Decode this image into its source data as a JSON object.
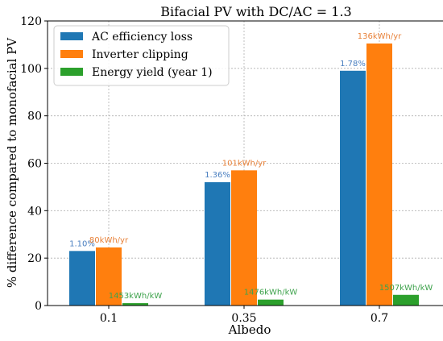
{
  "chart_data": {
    "type": "bar",
    "title": "Bifacial PV with DC/AC = 1.3",
    "xlabel": "Albedo",
    "ylabel": "% difference compared to monofacial PV",
    "categories": [
      "0.1",
      "0.35",
      "0.7"
    ],
    "ylim": [
      0,
      120
    ],
    "yticks": [
      "0",
      "20",
      "40",
      "60",
      "80",
      "100",
      "120"
    ],
    "grid": true,
    "legend_position": "top-left",
    "series": [
      {
        "name": "AC efficiency loss",
        "color": "#1f77b4",
        "label_color": "#4a7fc0",
        "values": [
          23,
          52,
          99
        ],
        "labels": [
          "1.10%",
          "1.36%",
          "1.78%"
        ]
      },
      {
        "name": "Inverter clipping",
        "color": "#ff7f0e",
        "label_color": "#e8823a",
        "values": [
          24.5,
          57,
          110.5
        ],
        "labels": [
          "80kWh/yr",
          "101kWh/yr",
          "136kWh/yr"
        ]
      },
      {
        "name": "Energy yield (year 1)",
        "color": "#2ca02c",
        "label_color": "#3fa34d",
        "values": [
          1,
          2.5,
          4.5
        ],
        "labels": [
          "1453kWh/kW",
          "1476kWh/kW",
          "1507kWh/kW"
        ]
      }
    ]
  }
}
